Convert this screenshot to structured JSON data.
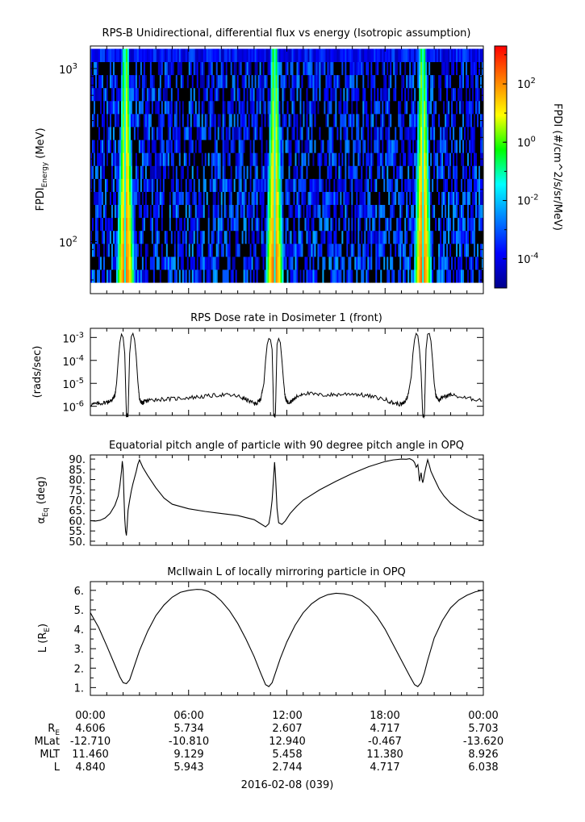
{
  "chart_data": [
    {
      "type": "heatmap",
      "title": "RPS-B  Unidirectional, differential flux vs energy (Isotropic assumption)",
      "ylabel": "FPDI",
      "ylabel_sub": "Energy",
      "ylabel_unit": " (MeV)",
      "yscale": "log",
      "ylim": [
        50,
        1350
      ],
      "yticks": [
        {
          "value": 100,
          "base": "10",
          "exp": "2"
        },
        {
          "value": 1000,
          "base": "10",
          "exp": "3"
        }
      ],
      "energy_range_mev": [
        58,
        1300
      ],
      "xlim_hours": [
        0,
        24
      ],
      "peak_centers_hours": [
        2.15,
        11.25,
        20.3
      ],
      "colorbar": {
        "label": "FPDI (#/cm^2/s/sr/MeV)",
        "scale": "log",
        "range_exp": [
          -5,
          3.3
        ],
        "ticks": [
          {
            "exp": "2",
            "value": 100
          },
          {
            "exp": "0",
            "value": 1
          },
          {
            "exp": "-2",
            "value": 0.01
          },
          {
            "exp": "-4",
            "value": 0.0001
          }
        ],
        "colors": [
          "#00008b",
          "#0000ff",
          "#0080ff",
          "#00ffff",
          "#00ff00",
          "#ffff00",
          "#ff8000",
          "#ff0000"
        ]
      },
      "fill_color": "#000000"
    },
    {
      "type": "line",
      "title": "RPS  Dose rate in Dosimeter 1 (front)",
      "ylabel": "(rads/sec)",
      "yscale": "log",
      "ylim": [
        4e-07,
        0.0025
      ],
      "yticks": [
        {
          "value": 0.001,
          "base": "10",
          "exp": "-3"
        },
        {
          "value": 0.0001,
          "base": "10",
          "exp": "-4"
        },
        {
          "value": 1e-05,
          "base": "10",
          "exp": "-5"
        },
        {
          "value": 1e-06,
          "base": "10",
          "exp": "-6"
        }
      ],
      "xlim_hours": [
        0,
        24
      ],
      "x": [
        0,
        0.5,
        1.0,
        1.2,
        1.35,
        1.5,
        1.6,
        1.7,
        1.8,
        1.9,
        2.0,
        2.1,
        2.2,
        2.3,
        2.4,
        2.5,
        2.6,
        2.7,
        2.8,
        2.9,
        3.0,
        3.1,
        3.2,
        3.3,
        3.5,
        4.0,
        5.0,
        6.0,
        7.0,
        8.0,
        9.0,
        9.5,
        10.0,
        10.2,
        10.4,
        10.6,
        10.7,
        10.8,
        10.9,
        11.0,
        11.1,
        11.2,
        11.3,
        11.4,
        11.5,
        11.6,
        11.7,
        11.8,
        11.9,
        12.0,
        12.1,
        12.3,
        12.5,
        13.0,
        14.0,
        15.0,
        16.0,
        17.0,
        18.0,
        18.5,
        19.0,
        19.2,
        19.4,
        19.6,
        19.7,
        19.8,
        19.9,
        20.0,
        20.1,
        20.2,
        20.3,
        20.4,
        20.5,
        20.6,
        20.7,
        20.8,
        20.9,
        21.0,
        21.1,
        21.3,
        21.5,
        22.0,
        23.0,
        24.0
      ],
      "y": [
        1.2e-06,
        1.3e-06,
        1.5e-06,
        1.7e-06,
        2e-06,
        3e-06,
        1e-05,
        0.0001,
        0.0006,
        0.0014,
        0.001,
        0.0002,
        4e-07,
        4e-07,
        0.0002,
        0.0011,
        0.0015,
        0.0008,
        0.00015,
        1.2e-05,
        2e-06,
        1.5e-06,
        1.4e-06,
        1.6e-06,
        1.8e-06,
        2e-06,
        2.1e-06,
        2.4e-06,
        2.7e-06,
        3.2e-06,
        2.8e-06,
        2e-06,
        1.3e-06,
        1.4e-06,
        2e-06,
        1e-05,
        0.0001,
        0.0005,
        0.0009,
        0.0008,
        0.0003,
        4e-07,
        4e-07,
        0.0005,
        0.0009,
        0.0006,
        0.0001,
        1.2e-05,
        2.5e-06,
        1.6e-06,
        1.5e-06,
        1.7e-06,
        2.3e-06,
        3.8e-06,
        3.1e-06,
        3.2e-06,
        3.6e-06,
        2.8e-06,
        2e-06,
        1.4e-06,
        1.2e-06,
        1.5e-06,
        3e-06,
        2e-05,
        0.0002,
        0.0008,
        0.0015,
        0.0012,
        0.0003,
        3e-05,
        4e-07,
        4e-07,
        0.0003,
        0.0014,
        0.0015,
        0.0007,
        0.0001,
        1e-05,
        3e-06,
        1.8e-06,
        2.5e-06,
        3.2e-06,
        2.2e-06,
        1.9e-06
      ]
    },
    {
      "type": "line",
      "title": "Equatorial pitch angle of particle with 90 degree pitch angle in OPQ",
      "ylabel": "α",
      "ylabel_sub": "Eq",
      "ylabel_unit": " (deg)",
      "ylim": [
        48,
        92
      ],
      "yticks": [
        "50.",
        "55.",
        "60.",
        "65.",
        "70.",
        "75.",
        "80.",
        "85.",
        "90."
      ],
      "xlim_hours": [
        0,
        24
      ],
      "x": [
        0,
        0.3,
        0.6,
        0.9,
        1.2,
        1.5,
        1.7,
        1.8,
        1.9,
        1.95,
        2.0,
        2.05,
        2.1,
        2.15,
        2.2,
        2.25,
        2.3,
        2.4,
        2.5,
        2.6,
        2.7,
        2.8,
        2.9,
        3.0,
        3.2,
        3.5,
        4.0,
        4.5,
        5.0,
        6.0,
        7.0,
        8.0,
        9.0,
        10.0,
        10.4,
        10.7,
        10.9,
        11.0,
        11.1,
        11.2,
        11.25,
        11.3,
        11.4,
        11.5,
        11.7,
        11.9,
        12.2,
        12.6,
        13.0,
        14.0,
        15.0,
        16.0,
        17.0,
        18.0,
        18.5,
        19.0,
        19.3,
        19.5,
        19.7,
        19.8,
        19.9,
        20.0,
        20.05,
        20.1,
        20.2,
        20.25,
        20.3,
        20.35,
        20.4,
        20.5,
        20.6,
        20.7,
        20.8,
        21.0,
        21.3,
        21.6,
        22.0,
        22.5,
        23.0,
        23.5,
        24.0
      ],
      "y": [
        60,
        59.8,
        60.2,
        61.3,
        63.5,
        67.5,
        72,
        77,
        84,
        89,
        85,
        72,
        61,
        55,
        52.8,
        58,
        65,
        70,
        74.5,
        78,
        81,
        84,
        87.5,
        89.6,
        86,
        82,
        76,
        71,
        68,
        65.8,
        64.5,
        63.5,
        62.5,
        60.5,
        58.5,
        57,
        58.5,
        63,
        70,
        82,
        88.5,
        83,
        66,
        59,
        58.2,
        59.8,
        63.5,
        67,
        70,
        75,
        79.2,
        83,
        86.3,
        88.8,
        89.6,
        90,
        89.9,
        90.2,
        89.4,
        88.3,
        86,
        87.3,
        84,
        79.2,
        83.4,
        80.1,
        78.5,
        80.3,
        82.6,
        86.3,
        89.7,
        87,
        84,
        80.5,
        75.5,
        72,
        68.5,
        65.5,
        63,
        61,
        60
      ]
    },
    {
      "type": "line",
      "title": "McIlwain L of locally mirroring particle in OPQ",
      "ylabel": "L (R",
      "ylabel_sub": "E",
      "ylabel_unit": ")",
      "ylim": [
        0.6,
        6.45
      ],
      "yticks": [
        "1.",
        "2.",
        "3.",
        "4.",
        "5.",
        "6."
      ],
      "xlim_hours": [
        0,
        24
      ],
      "x": [
        0,
        0.5,
        1.0,
        1.5,
        1.8,
        2.0,
        2.2,
        2.4,
        2.6,
        3.0,
        3.5,
        4.0,
        4.5,
        5.0,
        5.5,
        6.0,
        6.5,
        6.8,
        7.2,
        7.6,
        8.0,
        8.5,
        9.0,
        9.5,
        10.0,
        10.4,
        10.7,
        10.9,
        11.1,
        11.3,
        11.6,
        12.0,
        12.5,
        13.0,
        13.5,
        14.0,
        14.5,
        15.0,
        15.5,
        16.0,
        16.5,
        17.0,
        17.5,
        18.0,
        18.5,
        19.0,
        19.5,
        19.8,
        20.0,
        20.2,
        20.4,
        20.6,
        21.0,
        21.5,
        22.0,
        22.5,
        23.0,
        23.5,
        24.0
      ],
      "y": [
        4.85,
        4.1,
        3.15,
        2.15,
        1.55,
        1.25,
        1.2,
        1.4,
        1.9,
        2.9,
        3.9,
        4.7,
        5.25,
        5.65,
        5.9,
        6.0,
        6.05,
        6.04,
        5.95,
        5.75,
        5.45,
        4.95,
        4.3,
        3.5,
        2.6,
        1.75,
        1.15,
        1.05,
        1.25,
        1.75,
        2.5,
        3.35,
        4.2,
        4.85,
        5.3,
        5.6,
        5.78,
        5.85,
        5.82,
        5.72,
        5.5,
        5.15,
        4.65,
        4.0,
        3.2,
        2.4,
        1.6,
        1.15,
        1.05,
        1.25,
        1.75,
        2.4,
        3.55,
        4.45,
        5.1,
        5.5,
        5.75,
        5.92,
        6.02
      ]
    }
  ],
  "x_axis": {
    "tick_labels": [
      "00:00",
      "06:00",
      "12:00",
      "18:00",
      "00:00"
    ],
    "ephemeris": [
      {
        "label": "R",
        "label_sub": "E",
        "values": [
          "4.606",
          "5.734",
          "2.607",
          "4.717",
          "5.703"
        ]
      },
      {
        "label": "MLat",
        "label_sub": "",
        "values": [
          "-12.710",
          "-10.810",
          "12.940",
          "-0.467",
          "-13.620"
        ]
      },
      {
        "label": "MLT",
        "label_sub": "",
        "values": [
          "11.460",
          "9.129",
          "5.458",
          "11.380",
          "8.926"
        ]
      },
      {
        "label": "L",
        "label_sub": "",
        "values": [
          "4.840",
          "5.943",
          "2.744",
          "4.717",
          "6.038"
        ]
      }
    ],
    "date_label": "2016-02-08 (039)"
  }
}
